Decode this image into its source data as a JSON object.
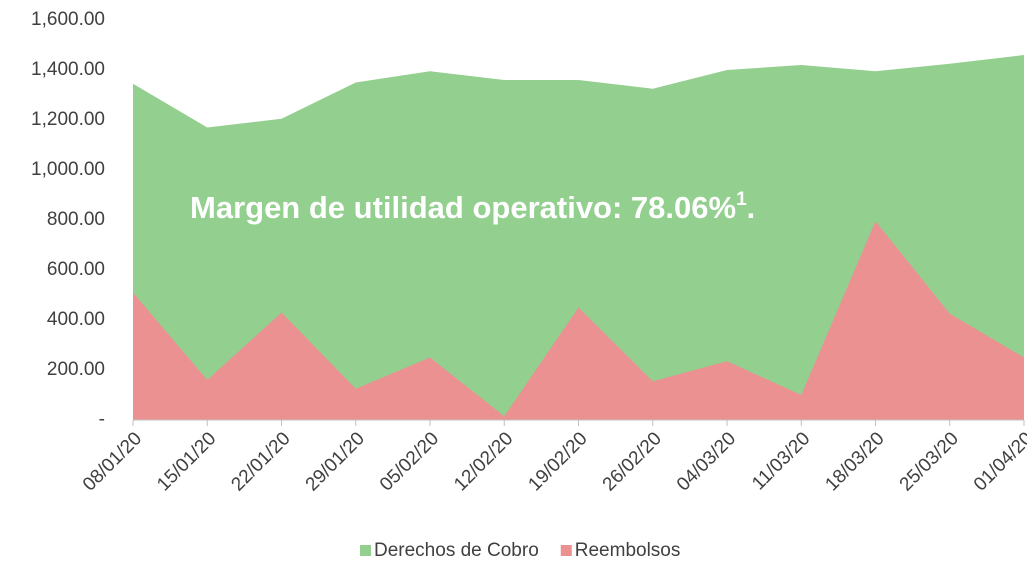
{
  "chart_data": {
    "type": "area",
    "categories": [
      "08/01/20",
      "15/01/20",
      "22/01/20",
      "29/01/20",
      "05/02/20",
      "12/02/20",
      "19/02/20",
      "26/02/20",
      "04/03/20",
      "11/03/20",
      "18/03/20",
      "25/03/20",
      "01/04/20"
    ],
    "series": [
      {
        "name": "Derechos de Cobro",
        "color": "#93cf8e",
        "values": [
          1345,
          1170,
          1205,
          1350,
          1395,
          1360,
          1360,
          1325,
          1400,
          1420,
          1395,
          1425,
          1460
        ]
      },
      {
        "name": "Reembolsos",
        "color": "#ec9191",
        "values": [
          510,
          160,
          430,
          125,
          250,
          15,
          450,
          155,
          235,
          100,
          795,
          425,
          250
        ]
      }
    ],
    "ylim": [
      0,
      1600
    ],
    "yticks": [
      {
        "value": 0,
        "label": "-"
      },
      {
        "value": 200,
        "label": "200.00"
      },
      {
        "value": 400,
        "label": "400.00"
      },
      {
        "value": 600,
        "label": "600.00"
      },
      {
        "value": 800,
        "label": "800.00"
      },
      {
        "value": 1000,
        "label": "1,000.00"
      },
      {
        "value": 1200,
        "label": "1,200.00"
      },
      {
        "value": 1400,
        "label": "1,400.00"
      },
      {
        "value": 1600,
        "label": "1,600.00"
      }
    ],
    "annotation": {
      "text": "Margen de utilidad operativo: 78.06%",
      "footnote": "1",
      "end": "."
    },
    "legend": "bottom"
  }
}
